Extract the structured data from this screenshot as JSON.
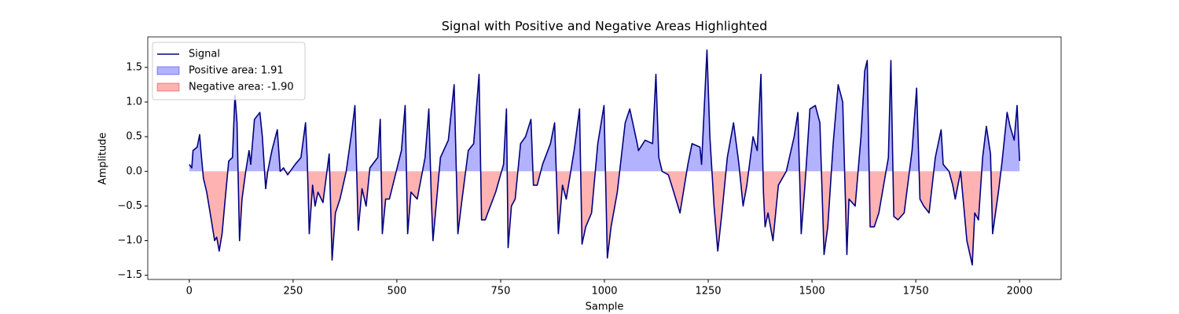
{
  "chart_data": {
    "type": "line",
    "title": "Signal with Positive and Negative Areas Highlighted",
    "x_label": "Sample",
    "y_label": "Amplitude",
    "x": [
      0,
      6,
      9,
      19,
      25,
      28,
      34,
      42,
      53,
      61,
      66,
      72,
      79,
      85,
      95,
      104,
      110,
      115,
      121,
      127,
      136,
      144,
      148,
      157,
      170,
      176,
      184,
      189,
      199,
      212,
      219,
      227,
      237,
      255,
      269,
      280,
      284,
      289,
      297,
      303,
      310,
      322,
      337,
      344,
      352,
      363,
      378,
      392,
      399,
      407,
      416,
      426,
      435,
      454,
      460,
      465,
      473,
      482,
      511,
      520,
      526,
      534,
      549,
      568,
      577,
      583,
      587,
      596,
      605,
      624,
      638,
      647,
      655,
      672,
      685,
      698,
      704,
      713,
      719,
      738,
      757,
      764,
      768,
      776,
      785,
      798,
      810,
      823,
      829,
      838,
      851,
      870,
      880,
      889,
      899,
      908,
      927,
      940,
      946,
      955,
      969,
      984,
      999,
      1007,
      1016,
      1031,
      1050,
      1061,
      1079,
      1082,
      1098,
      1116,
      1124,
      1131,
      1139,
      1154,
      1167,
      1182,
      1201,
      1211,
      1230,
      1234,
      1247,
      1254,
      1264,
      1273,
      1283,
      1296,
      1311,
      1324,
      1334,
      1343,
      1358,
      1368,
      1377,
      1383,
      1387,
      1394,
      1406,
      1419,
      1438,
      1457,
      1466,
      1474,
      1483,
      1495,
      1508,
      1519,
      1529,
      1538,
      1551,
      1563,
      1574,
      1584,
      1589,
      1604,
      1618,
      1627,
      1633,
      1640,
      1650,
      1661,
      1684,
      1690,
      1697,
      1707,
      1722,
      1741,
      1752,
      1760,
      1769,
      1782,
      1797,
      1811,
      1816,
      1830,
      1839,
      1845,
      1858,
      1873,
      1886,
      1892,
      1901,
      1911,
      1920,
      1930,
      1935,
      1949,
      1958,
      1970,
      1977,
      1987,
      1994,
      2000
    ],
    "series": [
      {
        "name": "Signal",
        "color": "#000080",
        "values": [
          0.1,
          0.05,
          0.3,
          0.35,
          0.53,
          0.3,
          -0.1,
          -0.3,
          -0.7,
          -1.0,
          -0.95,
          -1.15,
          -0.9,
          -0.5,
          0.15,
          0.2,
          1.1,
          0.7,
          -1.0,
          -0.4,
          0.0,
          0.3,
          0.1,
          0.75,
          0.85,
          0.5,
          -0.25,
          0.0,
          0.3,
          0.6,
          0.0,
          0.05,
          -0.05,
          0.1,
          0.2,
          0.7,
          0.2,
          -0.9,
          -0.2,
          -0.5,
          -0.3,
          -0.45,
          0.25,
          -1.28,
          -0.6,
          -0.4,
          0.0,
          0.6,
          0.95,
          -0.85,
          -0.25,
          -0.5,
          0.05,
          0.2,
          0.75,
          -0.9,
          -0.4,
          -0.4,
          0.3,
          0.95,
          -0.9,
          -0.3,
          -0.4,
          0.2,
          0.9,
          -0.4,
          -1.0,
          -0.4,
          0.2,
          0.45,
          1.25,
          -0.9,
          -0.5,
          0.3,
          0.4,
          1.4,
          -0.7,
          -0.7,
          -0.6,
          -0.3,
          0.1,
          0.9,
          -1.1,
          -0.5,
          -0.4,
          0.4,
          0.5,
          0.75,
          -0.2,
          -0.2,
          0.1,
          0.4,
          0.7,
          -0.9,
          -0.2,
          -0.4,
          0.3,
          0.9,
          -1.05,
          -0.8,
          -0.6,
          0.4,
          0.95,
          -1.25,
          -0.8,
          -0.3,
          0.7,
          0.9,
          0.4,
          0.3,
          0.45,
          0.4,
          1.4,
          0.2,
          0.0,
          -0.05,
          -0.3,
          -0.6,
          0.1,
          0.4,
          0.35,
          0.1,
          1.75,
          0.5,
          -0.5,
          -1.15,
          -0.6,
          0.2,
          0.7,
          0.1,
          -0.5,
          -0.2,
          0.5,
          0.3,
          1.4,
          -0.3,
          -0.8,
          -0.6,
          -1.0,
          -0.2,
          0.0,
          0.5,
          0.85,
          -0.9,
          -0.2,
          0.9,
          0.95,
          0.7,
          -1.2,
          -0.8,
          0.4,
          1.25,
          1.0,
          -1.2,
          -0.4,
          -0.5,
          0.5,
          1.45,
          1.6,
          -0.8,
          -0.8,
          -0.6,
          0.2,
          1.6,
          -0.65,
          -0.7,
          -0.6,
          0.3,
          1.2,
          -0.4,
          -0.5,
          -0.6,
          0.2,
          0.6,
          0.1,
          0.0,
          -0.2,
          -0.4,
          0.0,
          -1.0,
          -1.35,
          -0.6,
          -0.7,
          0.2,
          0.65,
          0.25,
          -0.9,
          -0.3,
          0.15,
          0.85,
          0.65,
          0.45,
          0.95,
          0.15
        ]
      }
    ],
    "areas": [
      {
        "name": "Positive area: 1.91",
        "color": "#0000ff",
        "side": "above"
      },
      {
        "name": "Negative area: -1.90",
        "color": "#ff0000",
        "side": "below"
      }
    ],
    "area_opacity": 0.3,
    "xlim": [
      -100,
      2100
    ],
    "ylim": [
      -1.56,
      1.94
    ],
    "xticks": [
      0,
      250,
      500,
      750,
      1000,
      1250,
      1500,
      1750,
      2000
    ],
    "yticks": [
      {
        "value": -1.5,
        "label": "−1.5"
      },
      {
        "value": -1,
        "label": "−1.0"
      },
      {
        "value": -0.5,
        "label": "−0.5"
      },
      {
        "value": 0,
        "label": "0.0"
      },
      0.5,
      {
        "value": 1,
        "label": "1.0"
      },
      1.5
    ],
    "grid": false,
    "legend": "upper left"
  }
}
